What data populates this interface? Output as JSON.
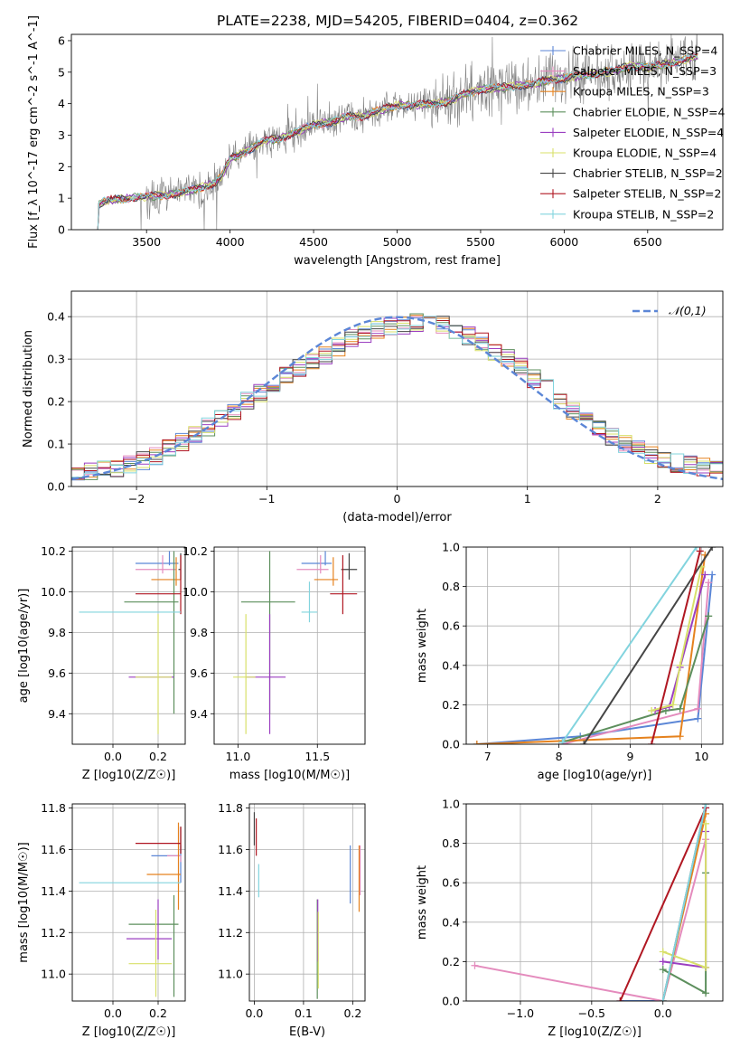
{
  "title": "PLATE=2238, MJD=54205, FIBERID=0404, z=0.362",
  "colors": {
    "Chabrier MILES": "#5b86d6",
    "Salpeter MILES": "#e48bbd",
    "Kroupa MILES": "#e5821e",
    "Chabrier ELODIE": "#5d8f5d",
    "Salpeter ELODIE": "#9b3fc1",
    "Kroupa ELODIE": "#d8e06a",
    "Chabrier STELIB": "#454545",
    "Salpeter STELIB": "#b01722",
    "Kroupa STELIB": "#82d4de",
    "normal": "#5b86d6",
    "data": "#808080"
  },
  "chart_data": [
    {
      "id": "spectrum",
      "type": "line",
      "xlabel": "wavelength [Angstrom, rest frame]",
      "ylabel": "Flux [f_λ 10^-17 erg cm^-2 s^-1 A^-1]",
      "xlim": [
        3050,
        6950
      ],
      "ylim": [
        0,
        6.2
      ],
      "xticks": [
        3500,
        4000,
        4500,
        5000,
        5500,
        6000,
        6500
      ],
      "yticks": [
        0,
        1,
        2,
        3,
        4,
        5,
        6
      ],
      "grid": false,
      "legend_position": "right",
      "legend": [
        {
          "name": "Chabrier MILES",
          "sub": "N_SSP=4"
        },
        {
          "name": "Salpeter MILES",
          "sub": "N_SSP=3"
        },
        {
          "name": "Kroupa MILES",
          "sub": "N_SSP=3"
        },
        {
          "name": "Chabrier ELODIE",
          "sub": "N_SSP=4"
        },
        {
          "name": "Salpeter ELODIE",
          "sub": "N_SSP=4"
        },
        {
          "name": "Kroupa ELODIE",
          "sub": "N_SSP=4"
        },
        {
          "name": "Chabrier STELIB",
          "sub": "N_SSP=2"
        },
        {
          "name": "Salpeter STELIB",
          "sub": "N_SSP=2"
        },
        {
          "name": "Kroupa STELIB",
          "sub": "N_SSP=2"
        }
      ],
      "model_continuum": {
        "x": [
          3200,
          3250,
          3300,
          3400,
          3500,
          3600,
          3700,
          3800,
          3900,
          3950,
          4000,
          4100,
          4200,
          4300,
          4400,
          4500,
          4600,
          4700,
          4800,
          4900,
          5000,
          5100,
          5200,
          5300,
          5400,
          5500,
          5600,
          5700,
          5800,
          5900,
          6000,
          6100,
          6200,
          6300,
          6400,
          6500,
          6600,
          6700,
          6800
        ],
        "y": [
          0.75,
          0.9,
          0.95,
          1.0,
          1.05,
          1.1,
          1.15,
          1.3,
          1.45,
          1.7,
          2.25,
          2.5,
          2.8,
          2.9,
          3.1,
          3.35,
          3.4,
          3.6,
          3.6,
          3.8,
          3.95,
          3.95,
          4.0,
          4.05,
          4.3,
          4.45,
          4.5,
          4.55,
          4.6,
          4.75,
          4.8,
          4.9,
          4.95,
          5.05,
          5.2,
          5.15,
          5.25,
          5.35,
          5.5
        ]
      }
    },
    {
      "id": "residuals",
      "type": "area",
      "xlabel": "(data-model)/error",
      "ylabel": "Normed distribution",
      "xlim": [
        -2.5,
        2.5
      ],
      "ylim": [
        0,
        0.46
      ],
      "xticks": [
        -2,
        -1,
        0,
        1,
        2
      ],
      "yticks": [
        0.0,
        0.1,
        0.2,
        0.3,
        0.4
      ],
      "grid": true,
      "legend": "𝒩(0,1)",
      "legend_position": "top-right",
      "bins": [
        -2.5,
        -2.4,
        -2.3,
        -2.2,
        -2.1,
        -2.0,
        -1.9,
        -1.8,
        -1.7,
        -1.6,
        -1.5,
        -1.4,
        -1.3,
        -1.2,
        -1.1,
        -1.0,
        -0.9,
        -0.8,
        -0.7,
        -0.6,
        -0.5,
        -0.4,
        -0.3,
        -0.2,
        -0.1,
        0.0,
        0.1,
        0.2,
        0.3,
        0.4,
        0.5,
        0.6,
        0.7,
        0.8,
        0.9,
        1.0,
        1.1,
        1.2,
        1.3,
        1.4,
        1.5,
        1.6,
        1.7,
        1.8,
        1.9,
        2.0,
        2.1,
        2.2,
        2.3,
        2.4
      ],
      "base": [
        0.03,
        0.035,
        0.04,
        0.045,
        0.05,
        0.06,
        0.07,
        0.09,
        0.105,
        0.12,
        0.14,
        0.16,
        0.18,
        0.2,
        0.22,
        0.24,
        0.265,
        0.28,
        0.295,
        0.31,
        0.33,
        0.35,
        0.36,
        0.37,
        0.375,
        0.38,
        0.385,
        0.385,
        0.38,
        0.37,
        0.355,
        0.34,
        0.32,
        0.3,
        0.28,
        0.255,
        0.23,
        0.205,
        0.18,
        0.16,
        0.14,
        0.12,
        0.1,
        0.085,
        0.075,
        0.065,
        0.055,
        0.05,
        0.045,
        0.04
      ]
    },
    {
      "id": "age-vs-Z",
      "type": "scatter",
      "xlabel": "Z [log10(Z/Z☉)]",
      "ylabel": "age [log10(age/yr)]",
      "xlim": [
        -0.18,
        0.32
      ],
      "ylim": [
        9.25,
        10.22
      ],
      "xticks": [
        0.0,
        0.2
      ],
      "yticks": [
        9.4,
        9.6,
        9.8,
        10.0,
        10.2
      ],
      "grid": true,
      "points": [
        {
          "model": "Chabrier MILES",
          "x": 0.25,
          "y": 10.14,
          "xerr": [
            0.15,
            0.04
          ],
          "yerr": [
            0.01,
            0.06
          ]
        },
        {
          "model": "Salpeter MILES",
          "x": 0.22,
          "y": 10.11,
          "xerr": [
            0.12,
            0.06
          ],
          "yerr": [
            0.02,
            0.07
          ]
        },
        {
          "model": "Kroupa MILES",
          "x": 0.28,
          "y": 10.06,
          "xerr": [
            0.11,
            0.02
          ],
          "yerr": [
            0.03,
            0.11
          ]
        },
        {
          "model": "Chabrier ELODIE",
          "x": 0.27,
          "y": 9.95,
          "xerr": [
            0.22,
            0.02
          ],
          "yerr": [
            0.55,
            0.25
          ]
        },
        {
          "model": "Salpeter ELODIE",
          "x": 0.2,
          "y": 9.58,
          "xerr": [
            0.13,
            0.07
          ],
          "yerr": [
            0.0,
            0.0
          ]
        },
        {
          "model": "Kroupa ELODIE",
          "x": 0.2,
          "y": 9.58,
          "xerr": [
            0.1,
            0.06
          ],
          "yerr": [
            0.28,
            0.31
          ]
        },
        {
          "model": "Chabrier STELIB",
          "x": 0.3,
          "y": 10.11,
          "xerr": [
            0.01,
            0.0
          ],
          "yerr": [
            0.05,
            0.08
          ]
        },
        {
          "model": "Salpeter STELIB",
          "x": 0.3,
          "y": 9.99,
          "xerr": [
            0.2,
            0.0
          ],
          "yerr": [
            0.1,
            0.19
          ]
        },
        {
          "model": "Kroupa STELIB",
          "x": 0.3,
          "y": 9.9,
          "xerr": [
            0.45,
            0.0
          ],
          "yerr": [
            0.0,
            0.0
          ]
        }
      ]
    },
    {
      "id": "age-vs-mass",
      "type": "scatter",
      "xlabel": "mass [log10(M/M☉)]",
      "ylabel": "",
      "xlim": [
        10.85,
        11.8
      ],
      "ylim": [
        9.25,
        10.22
      ],
      "xticks": [
        11.0,
        11.5
      ],
      "yticks": [
        9.4,
        9.6,
        9.8,
        10.0,
        10.2
      ],
      "grid": true,
      "points": [
        {
          "model": "Chabrier MILES",
          "x": 11.55,
          "y": 10.14,
          "xerr": [
            0.15,
            0.04
          ],
          "yerr": [
            0.01,
            0.06
          ]
        },
        {
          "model": "Salpeter MILES",
          "x": 11.52,
          "y": 10.11,
          "xerr": [
            0.15,
            0.05
          ],
          "yerr": [
            0.02,
            0.07
          ]
        },
        {
          "model": "Kroupa MILES",
          "x": 11.6,
          "y": 10.06,
          "xerr": [
            0.12,
            0.03
          ],
          "yerr": [
            0.03,
            0.11
          ]
        },
        {
          "model": "Chabrier ELODIE",
          "x": 11.2,
          "y": 9.95,
          "xerr": [
            0.18,
            0.16
          ],
          "yerr": [
            0.55,
            0.25
          ]
        },
        {
          "model": "Salpeter ELODIE",
          "x": 11.2,
          "y": 9.58,
          "xerr": [
            0.15,
            0.1
          ],
          "yerr": [
            0.28,
            0.31
          ]
        },
        {
          "model": "Kroupa ELODIE",
          "x": 11.05,
          "y": 9.58,
          "xerr": [
            0.08,
            0.06
          ],
          "yerr": [
            0.28,
            0.31
          ]
        },
        {
          "model": "Chabrier STELIB",
          "x": 11.7,
          "y": 10.11,
          "xerr": [
            0.05,
            0.05
          ],
          "yerr": [
            0.05,
            0.08
          ]
        },
        {
          "model": "Salpeter STELIB",
          "x": 11.66,
          "y": 9.99,
          "xerr": [
            0.08,
            0.09
          ],
          "yerr": [
            0.1,
            0.19
          ]
        },
        {
          "model": "Kroupa STELIB",
          "x": 11.45,
          "y": 9.9,
          "xerr": [
            0.05,
            0.05
          ],
          "yerr": [
            0.05,
            0.15
          ]
        }
      ]
    },
    {
      "id": "weight-vs-age",
      "type": "line",
      "xlabel": "age [log10(age/yr)]",
      "ylabel": "mass weight",
      "xlim": [
        6.7,
        10.3
      ],
      "ylim": [
        0,
        1.0
      ],
      "xticks": [
        7,
        8,
        9,
        10
      ],
      "yticks": [
        0.0,
        0.2,
        0.4,
        0.6,
        0.8,
        1.0
      ],
      "grid": true,
      "series": [
        {
          "name": "Chabrier MILES",
          "x": [
            6.85,
            8.3,
            9.95,
            10.15
          ],
          "y": [
            0.0,
            0.04,
            0.13,
            0.86
          ]
        },
        {
          "name": "Salpeter MILES",
          "x": [
            8.05,
            9.95,
            10.1
          ],
          "y": [
            0.0,
            0.18,
            0.82
          ]
        },
        {
          "name": "Kroupa MILES",
          "x": [
            6.85,
            9.7,
            10.05
          ],
          "y": [
            0.0,
            0.04,
            0.96
          ]
        },
        {
          "name": "Chabrier ELODIE",
          "x": [
            8.05,
            9.5,
            9.7,
            10.1
          ],
          "y": [
            0.01,
            0.17,
            0.18,
            0.65
          ]
        },
        {
          "name": "Salpeter ELODIE",
          "x": [
            9.35,
            9.55,
            9.7,
            10.05
          ],
          "y": [
            0.17,
            0.19,
            0.39,
            0.86
          ]
        },
        {
          "name": "Kroupa ELODIE",
          "x": [
            9.3,
            9.6,
            9.7,
            10.0
          ],
          "y": [
            0.17,
            0.2,
            0.4,
            0.9
          ]
        },
        {
          "name": "Chabrier STELIB",
          "x": [
            8.35,
            10.15
          ],
          "y": [
            0.0,
            1.0
          ]
        },
        {
          "name": "Salpeter STELIB",
          "x": [
            9.3,
            9.98
          ],
          "y": [
            0.0,
            0.98
          ]
        },
        {
          "name": "Kroupa STELIB",
          "x": [
            8.05,
            9.93
          ],
          "y": [
            0.01,
            1.0
          ]
        }
      ]
    },
    {
      "id": "mass-vs-Z",
      "type": "scatter",
      "xlabel": "Z [log10(Z/Z☉)]",
      "ylabel": "mass [log10(M/M☉)]",
      "xlim": [
        -0.18,
        0.32
      ],
      "ylim": [
        10.87,
        11.82
      ],
      "xticks": [
        0.0,
        0.2
      ],
      "yticks": [
        11.0,
        11.2,
        11.4,
        11.6,
        11.8
      ],
      "grid": true,
      "points": [
        {
          "model": "Chabrier MILES",
          "x": 0.3,
          "y": 11.57,
          "xerr": [
            0.13,
            0.0
          ],
          "yerr": [
            0.13,
            0.05
          ]
        },
        {
          "model": "Salpeter MILES",
          "x": 0.3,
          "y": 11.57,
          "xerr": [
            0.06,
            0.0
          ],
          "yerr": [
            0.03,
            0.0
          ]
        },
        {
          "model": "Kroupa MILES",
          "x": 0.29,
          "y": 11.48,
          "xerr": [
            0.14,
            0.01
          ],
          "yerr": [
            0.17,
            0.25
          ]
        },
        {
          "model": "Chabrier ELODIE",
          "x": 0.27,
          "y": 11.24,
          "xerr": [
            0.2,
            0.02
          ],
          "yerr": [
            0.35,
            0.14
          ]
        },
        {
          "model": "Salpeter ELODIE",
          "x": 0.2,
          "y": 11.17,
          "xerr": [
            0.14,
            0.06
          ],
          "yerr": [
            0.1,
            0.19
          ]
        },
        {
          "model": "Kroupa ELODIE",
          "x": 0.19,
          "y": 11.05,
          "xerr": [
            0.12,
            0.07
          ],
          "yerr": [
            0.16,
            0.26
          ]
        },
        {
          "model": "Chabrier STELIB",
          "x": 0.3,
          "y": 11.63,
          "xerr": [
            0.01,
            0.0
          ],
          "yerr": [
            0.05,
            0.08
          ]
        },
        {
          "model": "Salpeter STELIB",
          "x": 0.3,
          "y": 11.63,
          "xerr": [
            0.2,
            0.0
          ],
          "yerr": [
            0.05,
            0.08
          ]
        },
        {
          "model": "Kroupa STELIB",
          "x": 0.3,
          "y": 11.44,
          "xerr": [
            0.45,
            0.0
          ],
          "yerr": [
            0.0,
            0.0
          ]
        }
      ]
    },
    {
      "id": "mass-vs-EBV",
      "type": "scatter",
      "xlabel": "E(B-V)",
      "ylabel": "",
      "xlim": [
        -0.01,
        0.225
      ],
      "ylim": [
        10.87,
        11.82
      ],
      "xticks": [
        0.0,
        0.1,
        0.2
      ],
      "yticks": [
        11.0,
        11.2,
        11.4,
        11.6,
        11.8
      ],
      "grid": true,
      "points": [
        {
          "model": "Chabrier MILES",
          "x": 0.195,
          "y": 11.48,
          "xerr": [
            0,
            0
          ],
          "yerr": [
            0.14,
            0.14
          ]
        },
        {
          "model": "Salpeter MILES",
          "x": 0.215,
          "y": 11.5,
          "xerr": [
            0,
            0
          ],
          "yerr": [
            0.12,
            0.12
          ]
        },
        {
          "model": "Kroupa MILES",
          "x": 0.213,
          "y": 11.45,
          "xerr": [
            0,
            0
          ],
          "yerr": [
            0.15,
            0.17
          ]
        },
        {
          "model": "Chabrier ELODIE",
          "x": 0.128,
          "y": 11.14,
          "xerr": [
            0,
            0
          ],
          "yerr": [
            0.26,
            0.22
          ]
        },
        {
          "model": "Salpeter ELODIE",
          "x": 0.129,
          "y": 11.18,
          "xerr": [
            0,
            0
          ],
          "yerr": [
            0.12,
            0.18
          ]
        },
        {
          "model": "Kroupa ELODIE",
          "x": 0.13,
          "y": 11.08,
          "xerr": [
            0,
            0
          ],
          "yerr": [
            0.15,
            0.22
          ]
        },
        {
          "model": "Chabrier STELIB",
          "x": 0.0,
          "y": 11.7,
          "xerr": [
            0,
            0
          ],
          "yerr": [
            0.08,
            0.08
          ]
        },
        {
          "model": "Salpeter STELIB",
          "x": 0.004,
          "y": 11.63,
          "xerr": [
            0,
            0
          ],
          "yerr": [
            0.06,
            0.12
          ]
        },
        {
          "model": "Kroupa STELIB",
          "x": 0.009,
          "y": 11.45,
          "xerr": [
            0,
            0
          ],
          "yerr": [
            0.08,
            0.08
          ]
        }
      ]
    },
    {
      "id": "weight-vs-Z",
      "type": "line",
      "xlabel": "Z [log10(Z/Z☉)]",
      "ylabel": "mass weight",
      "xlim": [
        -1.38,
        0.42
      ],
      "ylim": [
        0,
        1.0
      ],
      "xticks": [
        -1.0,
        -0.5,
        0.0
      ],
      "yticks": [
        0.0,
        0.2,
        0.4,
        0.6,
        0.8,
        1.0
      ],
      "grid": true,
      "series": [
        {
          "name": "Chabrier MILES",
          "x": [
            -0.3,
            0.0,
            0.3
          ],
          "y": [
            0.0,
            0.0,
            0.98
          ]
        },
        {
          "name": "Salpeter MILES",
          "x": [
            -1.32,
            0.0,
            0.3
          ],
          "y": [
            0.18,
            0.0,
            0.82
          ]
        },
        {
          "name": "Kroupa MILES",
          "x": [
            0.0,
            0.3
          ],
          "y": [
            0.0,
            0.95
          ]
        },
        {
          "name": "Chabrier ELODIE",
          "x": [
            0.0,
            0.3,
            0.3
          ],
          "y": [
            0.16,
            0.04,
            0.65
          ]
        },
        {
          "name": "Salpeter ELODIE",
          "x": [
            0.0,
            0.3,
            0.3
          ],
          "y": [
            0.2,
            0.17,
            0.86
          ]
        },
        {
          "name": "Kroupa ELODIE",
          "x": [
            0.0,
            0.3,
            0.3
          ],
          "y": [
            0.25,
            0.17,
            0.9
          ]
        },
        {
          "name": "Chabrier STELIB",
          "x": [
            0.0,
            0.3
          ],
          "y": [
            0.0,
            1.0
          ]
        },
        {
          "name": "Salpeter STELIB",
          "x": [
            -0.3,
            0.3
          ],
          "y": [
            0.0,
            0.98
          ]
        },
        {
          "name": "Kroupa STELIB",
          "x": [
            0.0,
            0.3
          ],
          "y": [
            0.0,
            1.0
          ]
        }
      ]
    }
  ]
}
